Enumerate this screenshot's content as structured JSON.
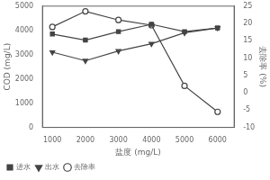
{
  "chart_data": {
    "type": "line",
    "x": [
      1000,
      2000,
      3000,
      4000,
      5000,
      6000
    ],
    "series": [
      {
        "name": "进水",
        "color": "#444444",
        "marker": "square",
        "values": [
          3850,
          3600,
          3950,
          4250,
          3950,
          4100
        ]
      },
      {
        "name": "出水",
        "color": "#444444",
        "marker": "triangle_down",
        "values": [
          3100,
          2750,
          3150,
          3450,
          3900,
          4100
        ]
      },
      {
        "name": "去除率",
        "color": "#444444",
        "marker": "circle_open",
        "axis": "y2",
        "values": [
          19,
          23.5,
          21,
          19.5,
          2,
          -5.5
        ]
      }
    ],
    "xlabel": "盐度 (mg/L)",
    "ylabel": "COD (mg/L)",
    "y2label": "去除率 (%)",
    "xlim": [
      700,
      6500
    ],
    "xticks": [
      1000,
      2000,
      3000,
      4000,
      5000,
      6000
    ],
    "ylim": [
      0,
      5000
    ],
    "yticks": [
      0,
      1000,
      2000,
      3000,
      4000,
      5000
    ],
    "y2lim": [
      -10,
      25
    ],
    "y2ticks": [
      -10,
      -5,
      0,
      5,
      10,
      15,
      20,
      25
    ],
    "legend": "lower left",
    "grid": false
  }
}
